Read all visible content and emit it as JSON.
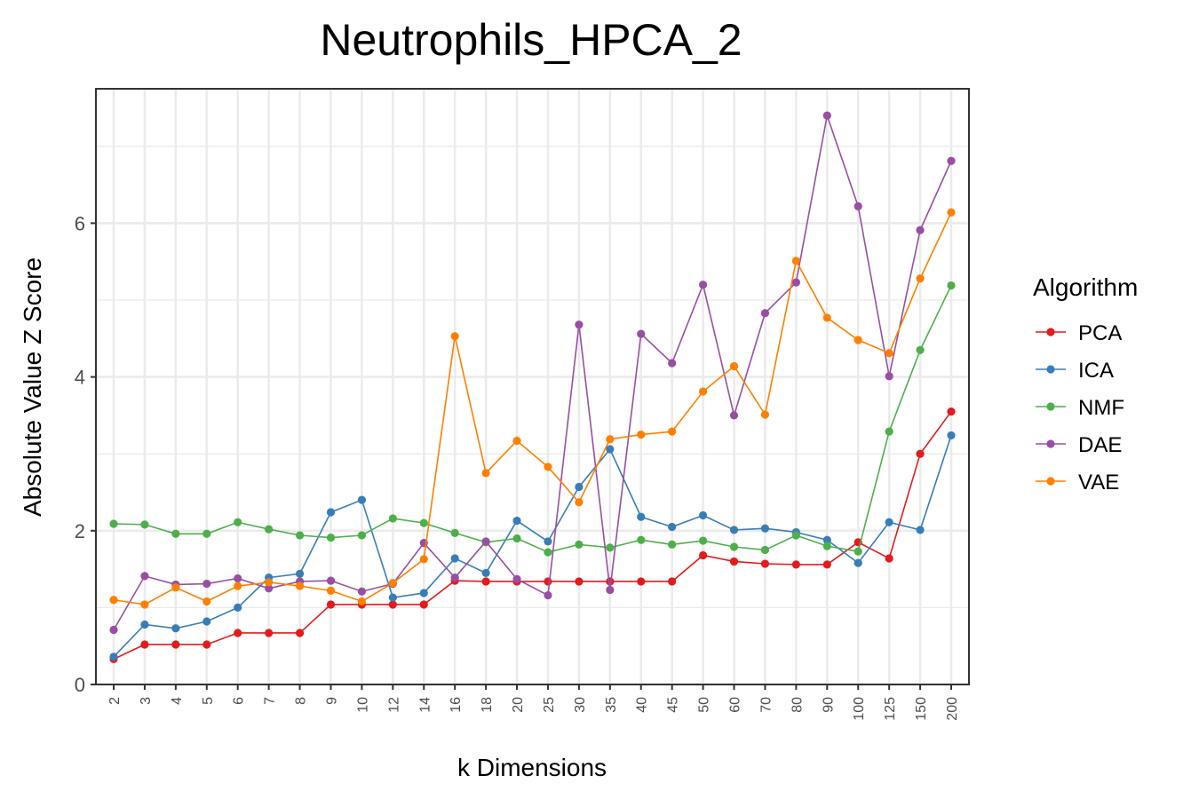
{
  "chart_data": {
    "type": "line",
    "title": "Neutrophils_HPCA_2",
    "xlabel": "k Dimensions",
    "ylabel": "Absolute Value Z Score",
    "categories": [
      "2",
      "3",
      "4",
      "5",
      "6",
      "7",
      "8",
      "9",
      "10",
      "12",
      "14",
      "16",
      "18",
      "20",
      "25",
      "30",
      "35",
      "40",
      "45",
      "50",
      "60",
      "70",
      "80",
      "90",
      "100",
      "125",
      "150",
      "200"
    ],
    "ylim": [
      0,
      7.7
    ],
    "yticks": [
      0,
      2,
      4,
      6
    ],
    "ytick_labels": [
      "0",
      "2",
      "4",
      "6"
    ],
    "grid": true,
    "legend": {
      "title": "Algorithm",
      "position": "right"
    },
    "series": [
      {
        "name": "PCA",
        "color": "#e41a1c",
        "values": [
          0.33,
          0.52,
          0.52,
          0.52,
          0.67,
          0.67,
          0.67,
          1.04,
          1.04,
          1.04,
          1.04,
          1.35,
          1.34,
          1.34,
          1.34,
          1.34,
          1.34,
          1.34,
          1.34,
          1.68,
          1.6,
          1.57,
          1.56,
          1.56,
          1.85,
          1.64,
          3.0,
          3.55
        ]
      },
      {
        "name": "ICA",
        "color": "#377eb8",
        "values": [
          0.36,
          0.78,
          0.73,
          0.82,
          1.0,
          1.39,
          1.44,
          2.24,
          2.4,
          1.13,
          1.19,
          1.64,
          1.45,
          2.13,
          1.86,
          2.57,
          3.06,
          2.18,
          2.05,
          2.2,
          2.01,
          2.03,
          1.98,
          1.88,
          1.58,
          2.11,
          2.01,
          3.24
        ]
      },
      {
        "name": "NMF",
        "color": "#4daf4a",
        "values": [
          2.09,
          2.08,
          1.96,
          1.96,
          2.11,
          2.02,
          1.94,
          1.91,
          1.94,
          2.16,
          2.1,
          1.97,
          1.85,
          1.9,
          1.72,
          1.82,
          1.78,
          1.88,
          1.82,
          1.87,
          1.79,
          1.75,
          1.94,
          1.8,
          1.73,
          3.29,
          4.35,
          5.19
        ]
      },
      {
        "name": "DAE",
        "color": "#984ea3",
        "values": [
          0.71,
          1.41,
          1.3,
          1.31,
          1.38,
          1.25,
          1.34,
          1.35,
          1.21,
          1.31,
          1.84,
          1.39,
          1.86,
          1.37,
          1.16,
          4.68,
          1.23,
          4.56,
          4.18,
          5.2,
          3.5,
          4.83,
          5.23,
          7.4,
          6.22,
          4.01,
          5.91,
          6.81
        ]
      },
      {
        "name": "VAE",
        "color": "#ff7f00",
        "values": [
          1.1,
          1.04,
          1.26,
          1.08,
          1.28,
          1.33,
          1.28,
          1.22,
          1.08,
          1.32,
          1.63,
          4.53,
          2.75,
          3.17,
          2.83,
          2.37,
          3.19,
          3.25,
          3.29,
          3.81,
          4.14,
          3.51,
          5.51,
          4.77,
          4.48,
          4.31,
          5.28,
          6.14
        ]
      }
    ]
  }
}
